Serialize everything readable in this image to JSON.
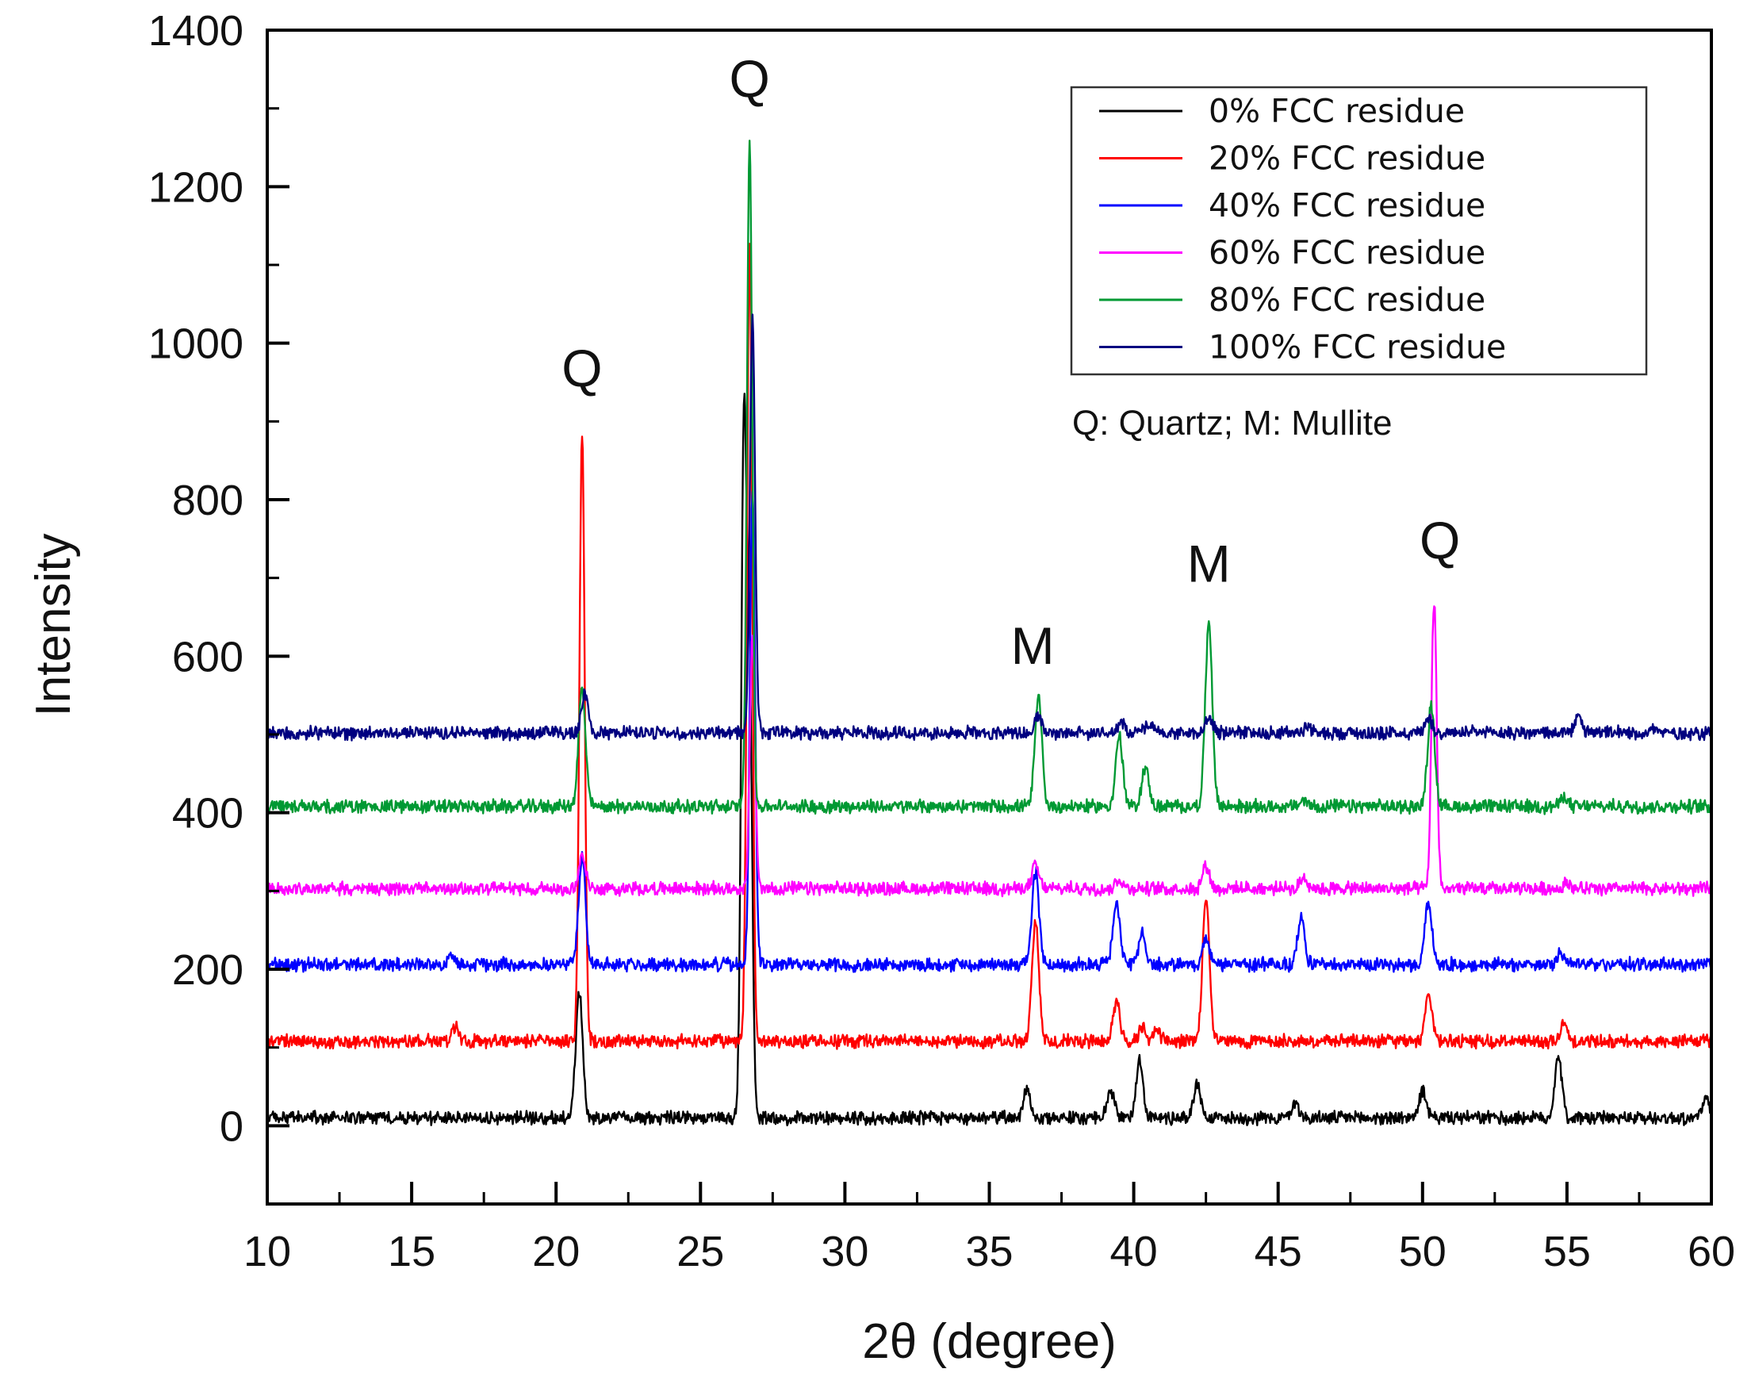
{
  "chart_data": {
    "type": "line",
    "title": "",
    "xlabel": "2θ (degree)",
    "ylabel": "Intensity",
    "xlim": [
      10,
      60
    ],
    "ylim": [
      -100,
      1400
    ],
    "xticks": [
      10,
      15,
      20,
      25,
      30,
      35,
      40,
      45,
      50,
      55,
      60
    ],
    "yticks": [
      0,
      200,
      400,
      600,
      800,
      1000,
      1200,
      1400
    ],
    "legend_position": "top-right",
    "note": "Q:  Quartz; M: Mullite",
    "annotations": [
      {
        "text": "Q",
        "x": 20.9,
        "y": 945
      },
      {
        "text": "Q",
        "x": 26.7,
        "y": 1315
      },
      {
        "text": "M",
        "x": 36.5,
        "y": 590
      },
      {
        "text": "M",
        "x": 42.6,
        "y": 695
      },
      {
        "text": "Q",
        "x": 50.6,
        "y": 725
      }
    ],
    "series": [
      {
        "name": "0% FCC residue",
        "color": "#000000",
        "baseline": 10,
        "peaks": [
          [
            20.8,
            160
          ],
          [
            26.5,
            870
          ],
          [
            26.7,
            560
          ],
          [
            36.3,
            40
          ],
          [
            39.2,
            35
          ],
          [
            40.2,
            75
          ],
          [
            42.2,
            45
          ],
          [
            45.6,
            20
          ],
          [
            50.0,
            35
          ],
          [
            54.7,
            80
          ],
          [
            59.8,
            25
          ]
        ]
      },
      {
        "name": "20% FCC residue",
        "color": "#ff0000",
        "baseline": 108,
        "peaks": [
          [
            16.5,
            20
          ],
          [
            20.9,
            780
          ],
          [
            26.7,
            1020
          ],
          [
            36.6,
            150
          ],
          [
            39.4,
            50
          ],
          [
            40.3,
            20
          ],
          [
            40.8,
            15
          ],
          [
            42.5,
            180
          ],
          [
            50.2,
            60
          ],
          [
            54.9,
            20
          ]
        ]
      },
      {
        "name": "40% FCC residue",
        "color": "#0000ff",
        "baseline": 206,
        "peaks": [
          [
            16.4,
            10
          ],
          [
            20.9,
            140
          ],
          [
            26.8,
            600
          ],
          [
            36.6,
            120
          ],
          [
            39.4,
            80
          ],
          [
            40.3,
            40
          ],
          [
            42.5,
            30
          ],
          [
            45.8,
            60
          ],
          [
            50.2,
            80
          ],
          [
            54.8,
            15
          ]
        ]
      },
      {
        "name": "60% FCC residue",
        "color": "#ff00ff",
        "baseline": 303,
        "peaks": [
          [
            20.9,
            40
          ],
          [
            26.8,
            320
          ],
          [
            36.6,
            30
          ],
          [
            39.5,
            12
          ],
          [
            42.5,
            30
          ],
          [
            45.9,
            15
          ],
          [
            50.4,
            370
          ],
          [
            55.0,
            8
          ]
        ]
      },
      {
        "name": "80% FCC residue",
        "color": "#009933",
        "baseline": 408,
        "peaks": [
          [
            20.9,
            150
          ],
          [
            26.7,
            855
          ],
          [
            36.7,
            140
          ],
          [
            39.5,
            90
          ],
          [
            40.4,
            50
          ],
          [
            42.6,
            235
          ],
          [
            45.9,
            8
          ],
          [
            50.3,
            130
          ],
          [
            54.9,
            12
          ]
        ]
      },
      {
        "name": "100% FCC residue",
        "color": "#000080",
        "baseline": 502,
        "peaks": [
          [
            21.0,
            50
          ],
          [
            26.8,
            530
          ],
          [
            36.7,
            20
          ],
          [
            39.6,
            15
          ],
          [
            40.5,
            12
          ],
          [
            42.6,
            18
          ],
          [
            46.0,
            8
          ],
          [
            50.2,
            20
          ],
          [
            55.4,
            20
          ],
          [
            58.0,
            6
          ]
        ]
      }
    ]
  }
}
